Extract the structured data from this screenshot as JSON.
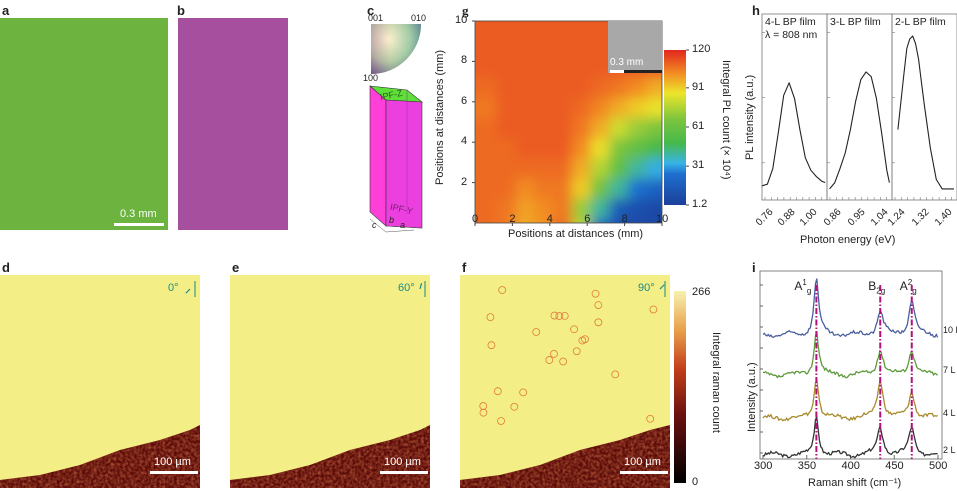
{
  "panels": {
    "a": {
      "label": "a",
      "scale_bar": "0.3 mm",
      "color": "#6db33f"
    },
    "b": {
      "label": "b",
      "scale_bar": "0.3 mm",
      "color": "#a54f9e"
    },
    "c": {
      "label": "c",
      "ipf_labels": {
        "p001": "001",
        "p010": "010",
        "p100": "100"
      },
      "face_top": "IPF-Z",
      "face_side": "IPF-Y",
      "axes": {
        "a": "a",
        "b": "b",
        "c": "c"
      }
    },
    "d": {
      "label": "d",
      "angle": "0°",
      "scale_bar": "100 µm"
    },
    "e": {
      "label": "e",
      "angle": "60°",
      "scale_bar": "100 µm"
    },
    "f": {
      "label": "f",
      "angle": "90°",
      "scale_bar": "100 µm"
    },
    "g": {
      "label": "g",
      "inset_scale_bar": "0.3 mm"
    },
    "h": {
      "label": "h"
    },
    "i": {
      "label": "i"
    }
  },
  "raman_colorbar": {
    "max": "266",
    "min": "0",
    "title": "Integral raman count"
  },
  "chart_data": [
    {
      "id": "g",
      "type": "heatmap",
      "xlabel": "Positions at distances (mm)",
      "ylabel": "Positions at distances (mm)",
      "xlim": [
        0,
        10
      ],
      "ylim": [
        0,
        10
      ],
      "xticks": [
        "0",
        "2",
        "4",
        "6",
        "8",
        "10"
      ],
      "yticks": [
        "2",
        "4",
        "6",
        "8",
        "10"
      ],
      "colorbar": {
        "title": "Integral PL count (× 10⁴)",
        "ticks": [
          "120",
          "91",
          "61",
          "31",
          "1.2"
        ],
        "range": [
          1.2,
          120
        ]
      },
      "grid_x": [
        0,
        1,
        2,
        3,
        4,
        5,
        6,
        7,
        8,
        9,
        10
      ],
      "grid_y": [
        0,
        1,
        2,
        3,
        4,
        5,
        6,
        7,
        8,
        9,
        10
      ],
      "z": [
        [
          110,
          110,
          108,
          100,
          104,
          110,
          80,
          15,
          8,
          5,
          5
        ],
        [
          110,
          110,
          108,
          102,
          105,
          108,
          75,
          40,
          12,
          8,
          5
        ],
        [
          110,
          110,
          110,
          105,
          108,
          108,
          95,
          65,
          40,
          20,
          15
        ],
        [
          110,
          110,
          110,
          110,
          110,
          110,
          100,
          80,
          60,
          40,
          30
        ],
        [
          110,
          110,
          110,
          112,
          112,
          112,
          105,
          92,
          70,
          60,
          50
        ],
        [
          110,
          110,
          112,
          112,
          112,
          112,
          108,
          100,
          85,
          75,
          70
        ],
        [
          108,
          108,
          112,
          112,
          112,
          112,
          110,
          106,
          100,
          95,
          90
        ],
        [
          110,
          110,
          112,
          112,
          112,
          112,
          112,
          110,
          108,
          105,
          100
        ],
        [
          112,
          112,
          112,
          112,
          112,
          112,
          112,
          112,
          112,
          112,
          112
        ],
        [
          112,
          112,
          112,
          112,
          112,
          112,
          112,
          112,
          112,
          112,
          112
        ],
        [
          112,
          112,
          112,
          112,
          112,
          112,
          112,
          112,
          112,
          112,
          112
        ]
      ]
    },
    {
      "id": "h",
      "type": "line",
      "xlabel": "Photon energy (eV)",
      "ylabel": "PL intensity (a.u.)",
      "subplots": [
        {
          "title": "4-L BP film",
          "note": "λ = 808 nm",
          "xlim": [
            0.72,
            1.08
          ],
          "xticks": [
            "0.76",
            "0.88",
            "1.00"
          ],
          "tick_values": [
            0.76,
            0.88,
            1.0
          ],
          "x": [
            0.72,
            0.75,
            0.78,
            0.81,
            0.84,
            0.87,
            0.9,
            0.93,
            0.96,
            0.99,
            1.02,
            1.05,
            1.07
          ],
          "y": [
            0.04,
            0.05,
            0.15,
            0.38,
            0.62,
            0.7,
            0.6,
            0.4,
            0.22,
            0.14,
            0.1,
            0.07,
            0.06
          ]
        },
        {
          "title": "3-L BP film",
          "xlim": [
            0.82,
            1.07
          ],
          "xticks": [
            "0.86",
            "0.95",
            "1.04"
          ],
          "tick_values": [
            0.86,
            0.95,
            1.04
          ],
          "x": [
            0.83,
            0.85,
            0.87,
            0.89,
            0.91,
            0.93,
            0.95,
            0.97,
            0.99,
            1.01,
            1.03,
            1.05,
            1.06
          ],
          "y": [
            0.02,
            0.06,
            0.15,
            0.25,
            0.4,
            0.58,
            0.72,
            0.77,
            0.74,
            0.6,
            0.38,
            0.14,
            0.06
          ]
        },
        {
          "title": "2-L BP film",
          "xlim": [
            1.21,
            1.43
          ],
          "xticks": [
            "1.24",
            "1.32",
            "1.40"
          ],
          "tick_values": [
            1.24,
            1.32,
            1.4
          ],
          "x": [
            1.23,
            1.25,
            1.26,
            1.27,
            1.28,
            1.29,
            1.3,
            1.31,
            1.32,
            1.34,
            1.36,
            1.38,
            1.4,
            1.42
          ],
          "y": [
            0.4,
            0.75,
            0.92,
            0.98,
            1.0,
            0.95,
            0.85,
            0.7,
            0.55,
            0.28,
            0.08,
            0.02,
            0.02,
            0.02
          ]
        }
      ]
    },
    {
      "id": "i",
      "type": "line",
      "xlabel": "Raman shift (cm⁻¹)",
      "ylabel": "Intensity (a.u.)",
      "xlim": [
        300,
        510
      ],
      "xticks": [
        "300",
        "350",
        "400",
        "450",
        "500"
      ],
      "tick_values": [
        300,
        350,
        400,
        450,
        500
      ],
      "peak_labels": [
        {
          "base": "A",
          "sup": "1",
          "sub": "g",
          "position": 361
        },
        {
          "base": "B",
          "sup": "",
          "sub": "2g",
          "position": 434
        },
        {
          "base": "A",
          "sup": "2",
          "sub": "g",
          "position": 470
        }
      ],
      "series": [
        {
          "name": "2 L",
          "color": "#333333",
          "offset": 0,
          "peaks": [
            [
              361,
              0.95
            ],
            [
              434,
              0.68
            ],
            [
              470,
              0.68
            ]
          ]
        },
        {
          "name": "4 L",
          "color": "#a98a2e",
          "offset": 0.93,
          "peaks": [
            [
              361,
              1.0
            ],
            [
              434,
              0.95
            ],
            [
              470,
              0.65
            ]
          ]
        },
        {
          "name": "7 L",
          "color": "#5d9b3a",
          "offset": 1.9,
          "peaks": [
            [
              361,
              1.12
            ],
            [
              434,
              0.65
            ],
            [
              470,
              0.65
            ]
          ]
        },
        {
          "name": "10 L",
          "color": "#4a5f9e",
          "offset": 3.0,
          "peaks": [
            [
              361,
              1.42
            ],
            [
              434,
              0.6
            ],
            [
              470,
              0.85
            ]
          ]
        }
      ]
    }
  ]
}
